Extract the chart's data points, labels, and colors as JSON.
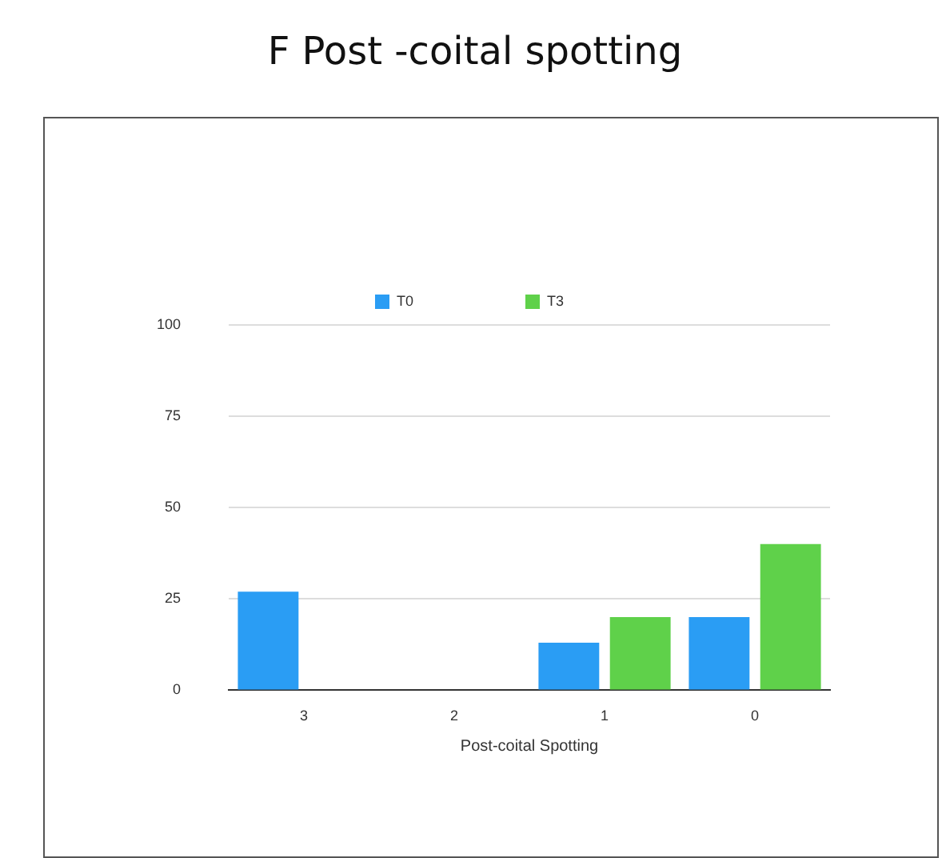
{
  "chart_data": {
    "type": "bar",
    "title": "F Post -coital spotting",
    "xlabel": "Post-coital Spotting",
    "categories": [
      "3",
      "2",
      "1",
      "0"
    ],
    "series": [
      {
        "name": "T0",
        "color": "#2a9df4",
        "values": [
          27,
          0,
          13,
          20
        ]
      },
      {
        "name": "T3",
        "color": "#5fd14a",
        "values": [
          0,
          0,
          20,
          40
        ]
      }
    ],
    "ylim": [
      0,
      100
    ],
    "yticks": [
      0,
      25,
      50,
      75,
      100
    ],
    "grid": "y",
    "legend": "top"
  }
}
